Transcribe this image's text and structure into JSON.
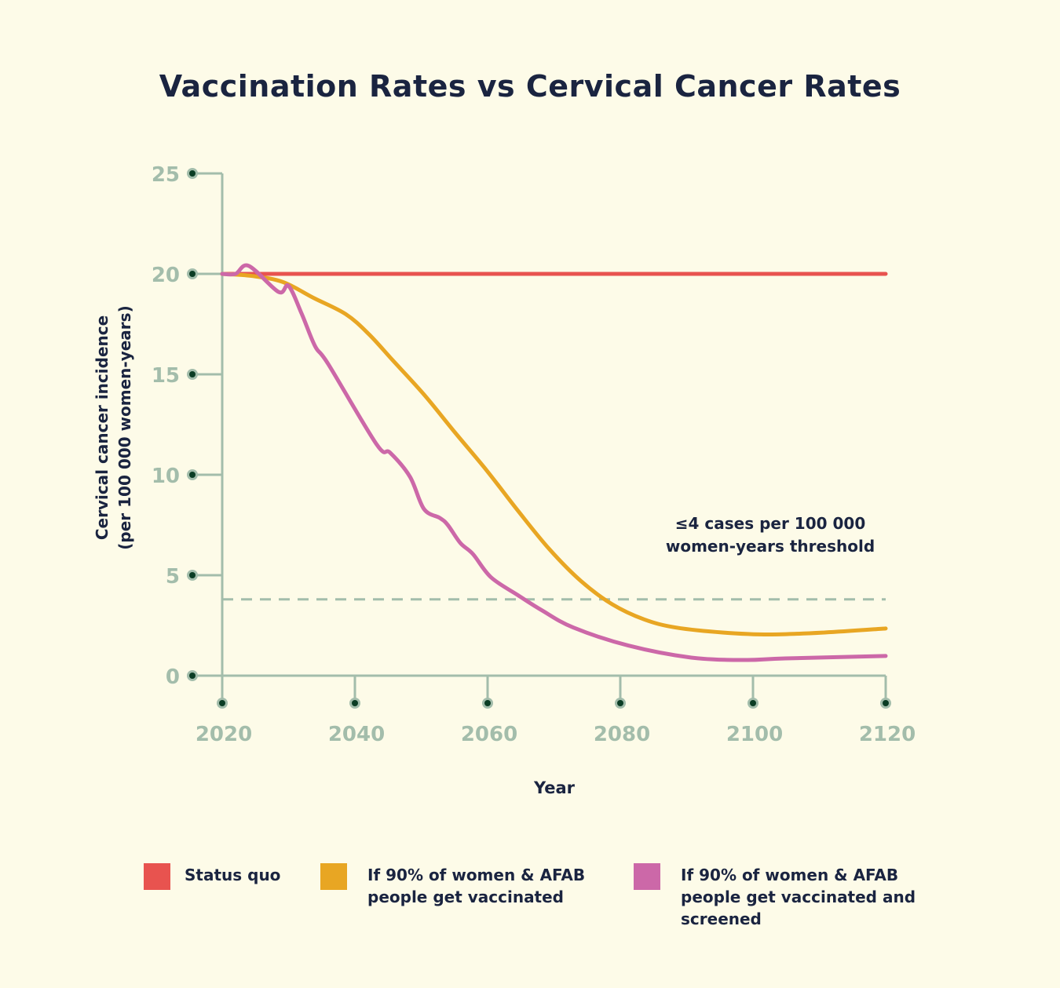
{
  "chart_data": {
    "type": "line",
    "title": "Vaccination Rates vs Cervical Cancer Rates",
    "xlabel": "Year",
    "ylabel_line1": "Cervical cancer incidence",
    "ylabel_line2": "(per 100 000 women-years)",
    "xlim": [
      2020,
      2120
    ],
    "ylim": [
      0,
      25
    ],
    "xticks": [
      2020,
      2040,
      2060,
      2080,
      2100,
      2120
    ],
    "xtick_labels": [
      "2020",
      "2040",
      "2060",
      "2080",
      "2100",
      "2120"
    ],
    "yticks": [
      0,
      5,
      10,
      15,
      20,
      25
    ],
    "ytick_labels": [
      "0",
      "5",
      "10",
      "15",
      "20",
      "25"
    ],
    "grid": false,
    "legend_position": "bottom",
    "threshold": {
      "value": 3.8,
      "label_line1": "≤4 cases per 100 000",
      "label_line2": "women-years threshold",
      "color": "#a3bdab"
    },
    "series": [
      {
        "name": "Status quo",
        "color": "#e8534f",
        "x": [
          2020,
          2120
        ],
        "y": [
          20,
          20
        ]
      },
      {
        "name": "If 90% of women & AFAB people get vaccinated",
        "color": "#e8a623",
        "x": [
          2020,
          2024.4,
          2029.1,
          2033.8,
          2038.6,
          2042.1,
          2045.7,
          2050.4,
          2055.1,
          2059.9,
          2064.6,
          2069.3,
          2074.1,
          2078.8,
          2083.6,
          2088.3,
          2095.4,
          2102.5,
          2110.8,
          2120
        ],
        "y": [
          20,
          19.9,
          19.6,
          18.8,
          18.0,
          17.0,
          15.7,
          14.0,
          12.1,
          10.2,
          8.2,
          6.3,
          4.7,
          3.55,
          2.8,
          2.4,
          2.15,
          2.05,
          2.15,
          2.35
        ]
      },
      {
        "name": "If 90% of women & AFAB people get vaccinated and screened",
        "color": "#cc68a8",
        "x": [
          2020,
          2022,
          2024,
          2028.5,
          2030,
          2032,
          2034,
          2036,
          2043.3,
          2045.3,
          2048.3,
          2050.4,
          2052.8,
          2054,
          2055.9,
          2057.8,
          2060.5,
          2064.6,
          2068.2,
          2072.9,
          2081.2,
          2090.7,
          2098.9,
          2104.9,
          2120
        ],
        "y": [
          20,
          20,
          20.4,
          19.1,
          19.4,
          18.0,
          16.4,
          15.5,
          11.5,
          11.1,
          9.9,
          8.3,
          7.85,
          7.5,
          6.6,
          6.05,
          4.9,
          4.0,
          3.25,
          2.4,
          1.5,
          0.9,
          0.78,
          0.86,
          0.98
        ]
      }
    ]
  },
  "legend": [
    {
      "lines": [
        "Status quo"
      ],
      "color": "#e8534f"
    },
    {
      "lines": [
        "If 90% of women & AFAB",
        "people get vaccinated"
      ],
      "color": "#e8a623"
    },
    {
      "lines": [
        "If 90% of women & AFAB",
        "people get vaccinated and",
        "screened"
      ],
      "color": "#cc68a8"
    }
  ],
  "colors": {
    "background": "#fdfbe8",
    "axis": "#a3bdab",
    "tick_dot": "#0b3d24",
    "text": "#1a2440"
  }
}
